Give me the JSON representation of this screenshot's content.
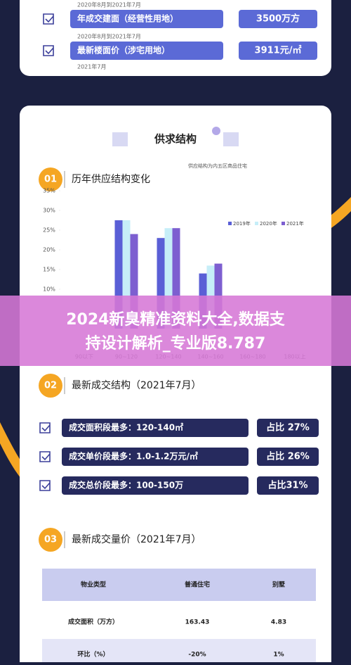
{
  "top_card": {
    "rows": [
      {
        "period": "2020年8月到2021年7月",
        "label": "年成交建面（经营性用地）",
        "value": "3500万方"
      },
      {
        "period": "2020年8月到2021年7月",
        "label": "最新楼面价（涉宅用地）",
        "value": "3911元/㎡"
      }
    ],
    "footnote": "2021年7月"
  },
  "main_card": {
    "title": "供求结构"
  },
  "section1": {
    "number": "01",
    "title": "历年供应结构变化",
    "chart_data": {
      "type": "bar",
      "subtitle": "供应结构为内五区商品住宅",
      "categories": [
        "90以下",
        "90~120",
        "120~140",
        "140~160",
        "160~180",
        "180以上"
      ],
      "series": [
        {
          "name": "2019年",
          "color": "#5a5fd6",
          "values": [
            null,
            27.5,
            23,
            14,
            null,
            null
          ]
        },
        {
          "name": "2020年",
          "color": "#c6eef8",
          "values": [
            null,
            27.5,
            25.5,
            16,
            null,
            null
          ]
        },
        {
          "name": "2021年",
          "color": "#7d5fd0",
          "values": [
            null,
            24,
            25.5,
            16.5,
            null,
            null
          ]
        }
      ],
      "ylim": [
        0,
        35
      ],
      "yticks": [
        {
          "value": 10,
          "label": "10%"
        },
        {
          "value": 15,
          "label": "15%"
        },
        {
          "value": 20,
          "label": "20%"
        },
        {
          "value": 25,
          "label": "25%"
        },
        {
          "value": 30,
          "label": "30%"
        },
        {
          "value": 35,
          "label": "35%"
        }
      ],
      "legend": "top-right"
    }
  },
  "banner": {
    "lines": [
      "2024新臭精准资料大全,数据支",
      "持设计解析_专业版8.787"
    ]
  },
  "section2": {
    "number": "02",
    "title": "最新成交结构（2021年7月）",
    "rows": [
      {
        "label": "成交面积段最多：120-140㎡",
        "value": "占比 27%"
      },
      {
        "label": "成交单价段最多：1.0-1.2万元/㎡",
        "value": "占比 26%"
      },
      {
        "label": "成交总价段最多：100-150万",
        "value": "占比31%"
      }
    ]
  },
  "section3": {
    "number": "03",
    "title": "最新成交量价（2021年7月）",
    "table": {
      "header": [
        "物业类型",
        "普通住宅",
        "别墅"
      ],
      "rows": [
        [
          "成交面积（万方）",
          "163.43",
          "4.83"
        ],
        [
          "环比（%）",
          "-20%",
          "1%"
        ]
      ]
    }
  }
}
